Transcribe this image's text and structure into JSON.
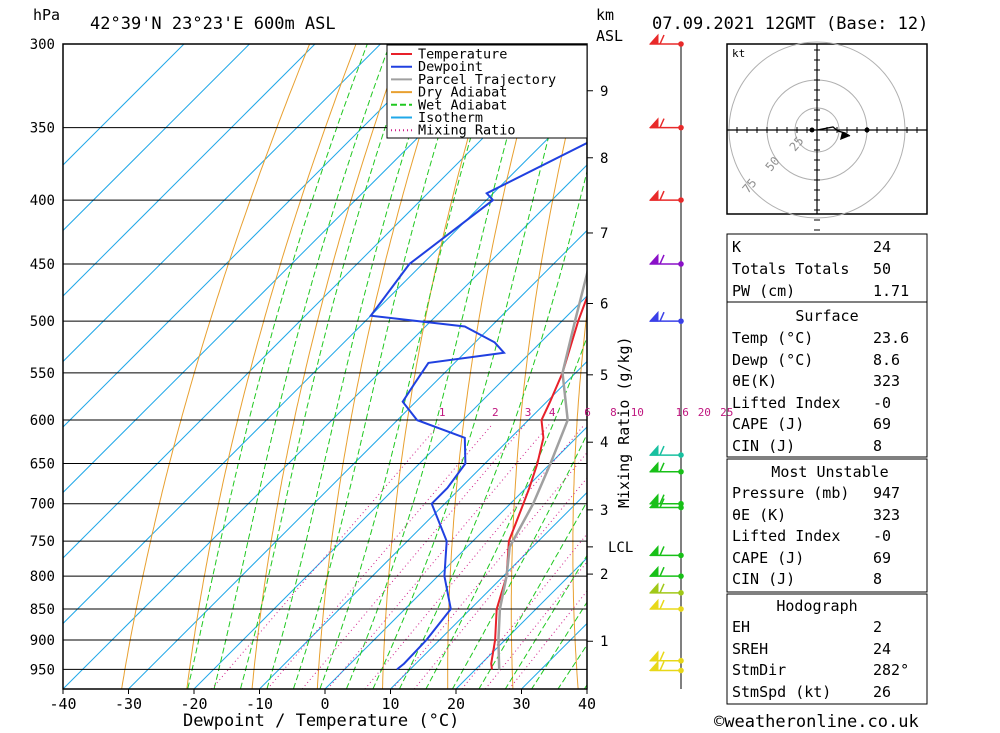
{
  "header": {
    "location": "42°39'N  23°23'E  600m  ASL",
    "datetime": "07.09.2021  12GMT  (Base: 12)",
    "hpa_unit": "hPa",
    "km_unit": "km",
    "asl_unit": "ASL"
  },
  "chart_data": {
    "type": "line",
    "subtype": "skew-t log-p",
    "xlabel": "Dewpoint / Temperature (°C)",
    "ylabel_right": "Mixing Ratio (g/kg)",
    "x_ticks": [
      -40,
      -30,
      -20,
      -10,
      0,
      10,
      20,
      30,
      40
    ],
    "pressure_ticks": [
      300,
      350,
      400,
      450,
      500,
      550,
      600,
      650,
      700,
      750,
      800,
      850,
      900,
      950
    ],
    "pressure_range": [
      300,
      985
    ],
    "temperature_range_at_bottom": [
      -40,
      40
    ],
    "km_ticks": [
      {
        "label": "9",
        "p": 327
      },
      {
        "label": "8",
        "p": 370
      },
      {
        "label": "7",
        "p": 425
      },
      {
        "label": "6",
        "p": 484
      },
      {
        "label": "5",
        "p": 552
      },
      {
        "label": "4",
        "p": 625
      },
      {
        "label": "3",
        "p": 708
      },
      {
        "label": "LCL",
        "p": 758
      },
      {
        "label": "2",
        "p": 797
      },
      {
        "label": "1",
        "p": 902
      }
    ],
    "mixing_ratio_labels": [
      "1",
      "2",
      "3",
      "4",
      "6",
      "8",
      "10",
      "16",
      "20",
      "25"
    ],
    "mixing_ratio_values": [
      1,
      2,
      3,
      4,
      6,
      8,
      10,
      16,
      20,
      25
    ],
    "legend": [
      "Temperature",
      "Dewpoint",
      "Parcel Trajectory",
      "Dry Adiabat",
      "Wet Adiabat",
      "Isotherm",
      "Mixing Ratio"
    ],
    "legend_placement": "top-right of plot",
    "series": [
      {
        "name": "Temperature",
        "color": "#e8202a",
        "points": [
          [
            950,
            22.5
          ],
          [
            940,
            21.5
          ],
          [
            900,
            18.5
          ],
          [
            850,
            14
          ],
          [
            800,
            10.5
          ],
          [
            750,
            5.5
          ],
          [
            700,
            2
          ],
          [
            680,
            0.5
          ],
          [
            650,
            -2
          ],
          [
            620,
            -5
          ],
          [
            600,
            -8
          ],
          [
            580,
            -9.5
          ],
          [
            550,
            -12
          ],
          [
            500,
            -17.5
          ],
          [
            450,
            -23
          ],
          [
            400,
            -30
          ],
          [
            395,
            -29.5
          ],
          [
            350,
            -38
          ],
          [
            300,
            -47
          ]
        ]
      },
      {
        "name": "Dewpoint",
        "color": "#2040e0",
        "points": [
          [
            950,
            8
          ],
          [
            940,
            8.2
          ],
          [
            900,
            8
          ],
          [
            850,
            7
          ],
          [
            800,
            1
          ],
          [
            750,
            -4
          ],
          [
            700,
            -12
          ],
          [
            680,
            -12
          ],
          [
            650,
            -13
          ],
          [
            620,
            -17
          ],
          [
            600,
            -27
          ],
          [
            580,
            -32
          ],
          [
            560,
            -33
          ],
          [
            540,
            -34
          ],
          [
            530,
            -24
          ],
          [
            520,
            -27
          ],
          [
            505,
            -34
          ],
          [
            495,
            -50
          ],
          [
            450,
            -52
          ],
          [
            400,
            -49
          ],
          [
            395,
            -51
          ],
          [
            350,
            -41
          ],
          [
            320,
            -33
          ],
          [
            300,
            -40
          ]
        ]
      },
      {
        "name": "Parcel Trajectory",
        "color": "#a0a0a0",
        "points": [
          [
            950,
            23.6
          ],
          [
            900,
            19
          ],
          [
            850,
            14.5
          ],
          [
            800,
            10.5
          ],
          [
            758,
            6.5
          ],
          [
            700,
            3.5
          ],
          [
            650,
            0
          ],
          [
            600,
            -4
          ],
          [
            550,
            -12
          ],
          [
            500,
            -18
          ],
          [
            450,
            -24.5
          ],
          [
            400,
            -32
          ],
          [
            350,
            -41
          ],
          [
            300,
            -51
          ]
        ]
      }
    ],
    "wind_barbs": [
      {
        "p": 300,
        "color": "#e82a2a"
      },
      {
        "p": 350,
        "color": "#e82a2a"
      },
      {
        "p": 400,
        "color": "#e82a2a"
      },
      {
        "p": 450,
        "color": "#8a10c8"
      },
      {
        "p": 500,
        "color": "#3a40e8"
      },
      {
        "p": 640,
        "color": "#18c0a0"
      },
      {
        "p": 660,
        "color": "#18c018"
      },
      {
        "p": 700,
        "color": "#18c018"
      },
      {
        "p": 705,
        "color": "#18c018"
      },
      {
        "p": 770,
        "color": "#18c018"
      },
      {
        "p": 800,
        "color": "#18c018"
      },
      {
        "p": 825,
        "color": "#a0c818"
      },
      {
        "p": 850,
        "color": "#e8d818"
      },
      {
        "p": 935,
        "color": "#e8d818"
      },
      {
        "p": 952,
        "color": "#e8d818"
      }
    ]
  },
  "hodograph": {
    "unit": "kt",
    "ring_labels": [
      "25",
      "50",
      "75"
    ]
  },
  "indices": {
    "rows": [
      {
        "label": "K",
        "value": "24"
      },
      {
        "label": "Totals Totals",
        "value": "50"
      },
      {
        "label": "PW (cm)",
        "value": "1.71"
      }
    ]
  },
  "surface": {
    "title": "Surface",
    "rows": [
      {
        "label": "Temp (°C)",
        "value": "23.6"
      },
      {
        "label": "Dewp (°C)",
        "value": "8.6"
      },
      {
        "label": "θE(K)",
        "value": "323"
      },
      {
        "label": "Lifted Index",
        "value": "-0"
      },
      {
        "label": "CAPE (J)",
        "value": "69"
      },
      {
        "label": "CIN (J)",
        "value": "8"
      }
    ]
  },
  "most_unstable": {
    "title": "Most Unstable",
    "rows": [
      {
        "label": "Pressure (mb)",
        "value": "947"
      },
      {
        "label": "θE (K)",
        "value": "323"
      },
      {
        "label": "Lifted Index",
        "value": "-0"
      },
      {
        "label": "CAPE (J)",
        "value": "69"
      },
      {
        "label": "CIN (J)",
        "value": "8"
      }
    ]
  },
  "hodograph_table": {
    "title": "Hodograph",
    "rows": [
      {
        "label": "EH",
        "value": "2"
      },
      {
        "label": "SREH",
        "value": "24"
      },
      {
        "label": "StmDir",
        "value": "282°"
      },
      {
        "label": "StmSpd (kt)",
        "value": "26"
      }
    ]
  },
  "footer": {
    "credit": "©weatheronline.co.uk"
  }
}
